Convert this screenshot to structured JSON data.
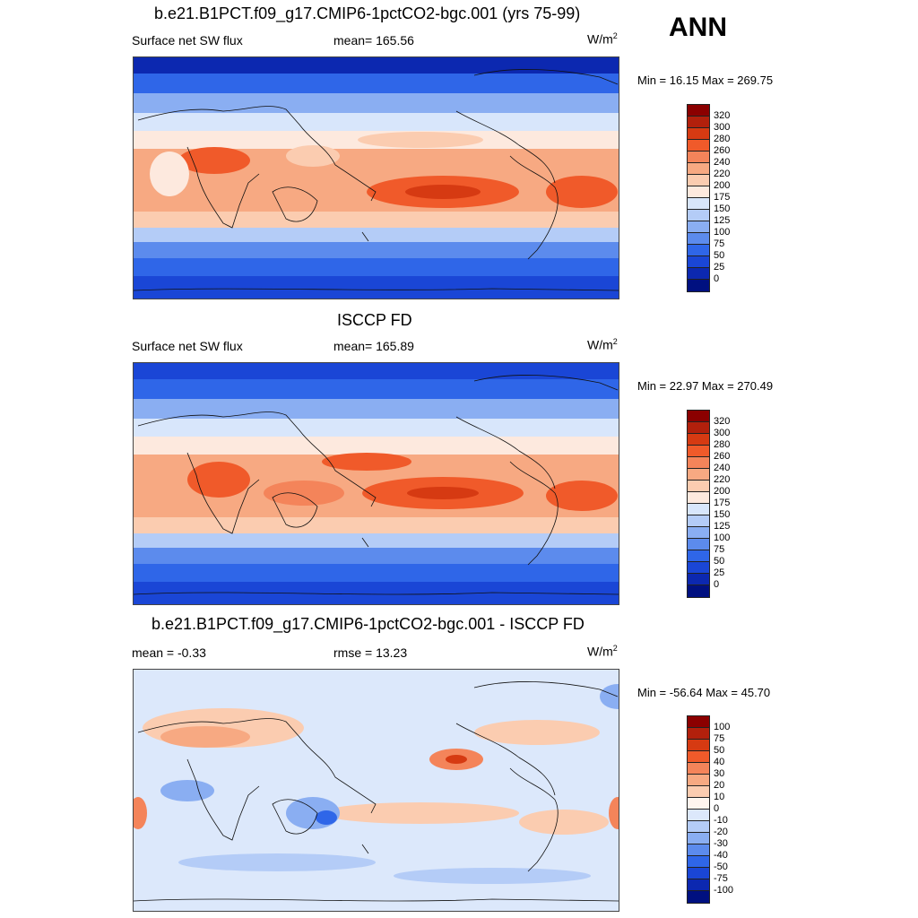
{
  "season": "ANN",
  "panels": [
    {
      "title": "b.e21.B1PCT.f09_g17.CMIP6-1pctCO2-bgc.001 (yrs 75-99)",
      "left_label": "Surface net SW flux",
      "center_label": "mean= 165.56",
      "units_base": "W/m",
      "units_exp": "2",
      "minmax": "Min =  16.15 Max = 269.75",
      "colorbar_labels": [
        "320",
        "300",
        "280",
        "260",
        "240",
        "220",
        "200",
        "175",
        "150",
        "125",
        "100",
        "75",
        "50",
        "25",
        "0"
      ],
      "colorbar_colors": [
        "#8b0000",
        "#b2200c",
        "#d63a12",
        "#f05a2a",
        "#f4845a",
        "#f7a982",
        "#fbccb0",
        "#fde9de",
        "#d8e6fb",
        "#b4ccf7",
        "#8aaef2",
        "#5c8bed",
        "#2f66e8",
        "#1a46d6",
        "#0c28b0",
        "#001080"
      ]
    },
    {
      "title": "ISCCP FD",
      "left_label": "Surface net SW flux",
      "center_label": "mean= 165.89",
      "units_base": "W/m",
      "units_exp": "2",
      "minmax": "Min =  22.97 Max = 270.49",
      "colorbar_labels": [
        "320",
        "300",
        "280",
        "260",
        "240",
        "220",
        "200",
        "175",
        "150",
        "125",
        "100",
        "75",
        "50",
        "25",
        "0"
      ],
      "colorbar_colors": [
        "#8b0000",
        "#b2200c",
        "#d63a12",
        "#f05a2a",
        "#f4845a",
        "#f7a982",
        "#fbccb0",
        "#fde9de",
        "#d8e6fb",
        "#b4ccf7",
        "#8aaef2",
        "#5c8bed",
        "#2f66e8",
        "#1a46d6",
        "#0c28b0",
        "#001080"
      ]
    },
    {
      "title": "b.e21.B1PCT.f09_g17.CMIP6-1pctCO2-bgc.001 - ISCCP FD",
      "left_label": "mean =  -0.33",
      "center_label": "rmse =  13.23",
      "units_base": "W/m",
      "units_exp": "2",
      "minmax": "Min = -56.64 Max =  45.70",
      "colorbar_labels": [
        "100",
        "75",
        "50",
        "40",
        "30",
        "20",
        "10",
        "0",
        "-10",
        "-20",
        "-30",
        "-40",
        "-50",
        "-75",
        "-100"
      ],
      "colorbar_colors": [
        "#8b0000",
        "#b2200c",
        "#d63a12",
        "#f05a2a",
        "#f4845a",
        "#f7a982",
        "#fbccb0",
        "#fff5ee",
        "#dce8fb",
        "#b4ccf7",
        "#8aaef2",
        "#5c8bed",
        "#2f66e8",
        "#1a46d6",
        "#0c28b0",
        "#001080"
      ]
    }
  ]
}
